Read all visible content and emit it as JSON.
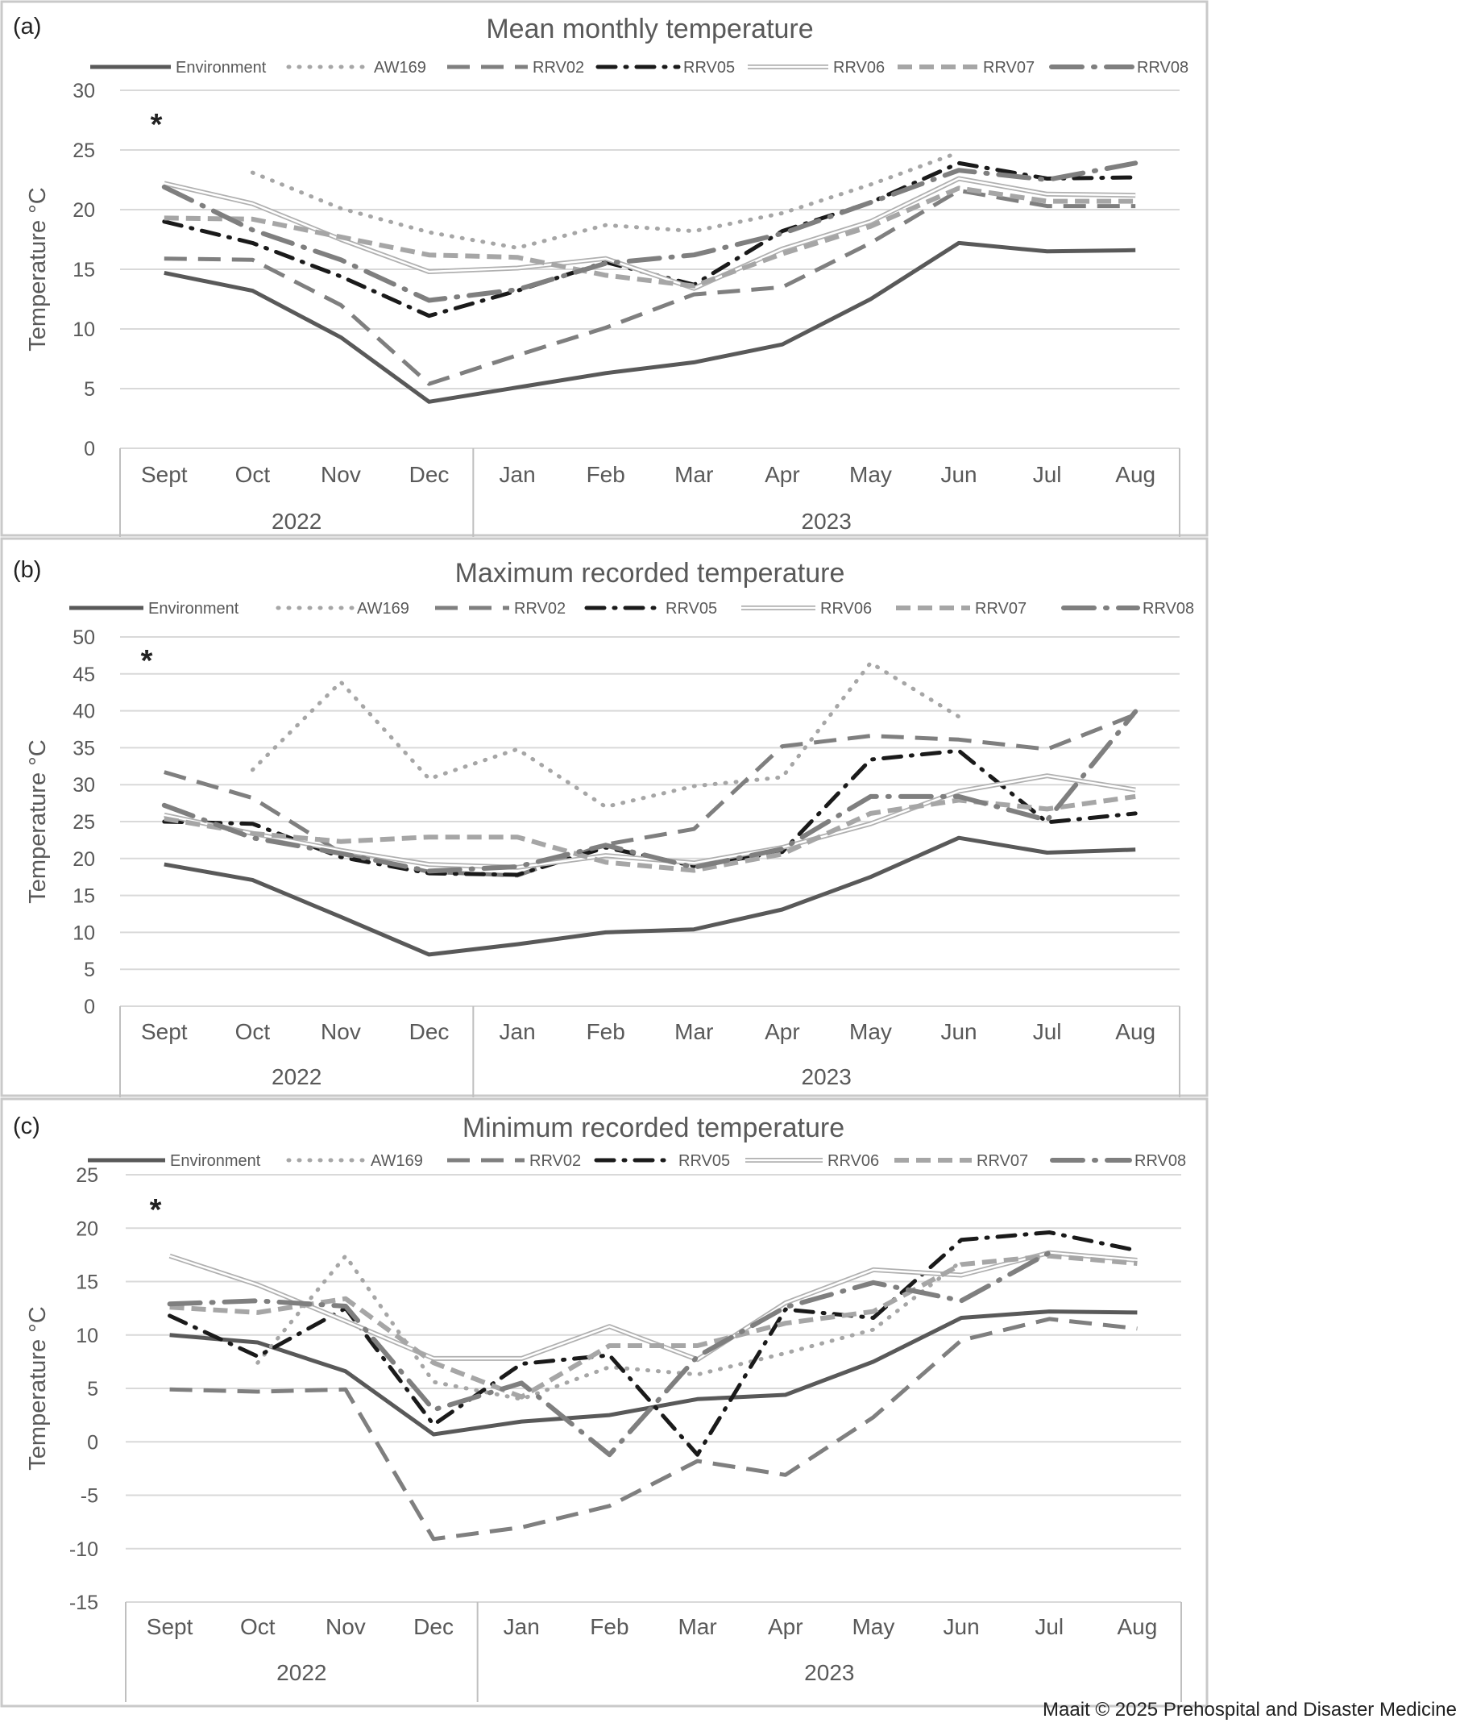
{
  "credit": "Maait © 2025 Prehospital and Disaster Medicine",
  "chart_data": [
    {
      "type": "line",
      "panel_label": "(a)",
      "title": "Mean monthly temperature",
      "ylabel": "Temperature °C",
      "xlabel": "",
      "ylim": [
        0,
        30
      ],
      "y_ticks": [
        0,
        5,
        10,
        15,
        20,
        25,
        30
      ],
      "grid": true,
      "legend_position": "top",
      "annotation": "*",
      "categories": [
        "Sept",
        "Oct",
        "Nov",
        "Dec",
        "Jan",
        "Feb",
        "Mar",
        "Apr",
        "May",
        "Jun",
        "Jul",
        "Aug"
      ],
      "year_groups": [
        {
          "label": "2022",
          "span": 4
        },
        {
          "label": "2023",
          "span": 8
        }
      ],
      "series": [
        {
          "name": "Environment",
          "values": [
            14.7,
            13.2,
            9.3,
            3.9,
            5.1,
            6.3,
            7.2,
            8.7,
            12.5,
            17.2,
            16.5,
            16.6
          ]
        },
        {
          "name": "AW169",
          "values": [
            null,
            23.1,
            20.1,
            18.1,
            16.8,
            18.7,
            18.2,
            19.7,
            22.1,
            24.8,
            null,
            null
          ]
        },
        {
          "name": "RRV02",
          "values": [
            15.9,
            15.8,
            12.0,
            5.4,
            7.8,
            10.1,
            12.9,
            13.5,
            17.2,
            21.6,
            20.3,
            20.3
          ]
        },
        {
          "name": "RRV05",
          "values": [
            19.0,
            17.2,
            14.4,
            11.1,
            13.2,
            15.6,
            13.7,
            18.2,
            20.6,
            23.9,
            22.6,
            22.7
          ]
        },
        {
          "name": "RRV06",
          "values": [
            22.2,
            20.5,
            17.5,
            14.8,
            15.1,
            15.9,
            13.4,
            16.7,
            19.0,
            22.6,
            21.3,
            21.2
          ]
        },
        {
          "name": "RRV07",
          "values": [
            19.3,
            19.2,
            17.7,
            16.2,
            16.0,
            14.5,
            13.6,
            16.3,
            18.6,
            21.8,
            20.7,
            20.7
          ]
        },
        {
          "name": "RRV08",
          "values": [
            21.9,
            18.3,
            15.8,
            12.4,
            13.3,
            15.5,
            16.2,
            18.0,
            20.6,
            23.3,
            22.5,
            23.9
          ]
        }
      ]
    },
    {
      "type": "line",
      "panel_label": "(b)",
      "title": "Maximum recorded temperature",
      "ylabel": "Temperature °C",
      "xlabel": "",
      "ylim": [
        0,
        50
      ],
      "y_ticks": [
        0,
        5,
        10,
        15,
        20,
        25,
        30,
        35,
        40,
        45,
        50
      ],
      "grid": true,
      "legend_position": "top",
      "annotation": "*",
      "categories": [
        "Sept",
        "Oct",
        "Nov",
        "Dec",
        "Jan",
        "Feb",
        "Mar",
        "Apr",
        "May",
        "Jun",
        "Jul",
        "Aug"
      ],
      "year_groups": [
        {
          "label": "2022",
          "span": 4
        },
        {
          "label": "2023",
          "span": 8
        }
      ],
      "series": [
        {
          "name": "Environment",
          "values": [
            19.2,
            17.1,
            12.1,
            7.0,
            8.4,
            10.0,
            10.4,
            13.1,
            17.5,
            22.8,
            20.8,
            21.2
          ]
        },
        {
          "name": "AW169",
          "values": [
            null,
            32.0,
            43.9,
            30.8,
            34.8,
            27.0,
            29.8,
            31.0,
            46.5,
            39.2,
            null,
            null
          ]
        },
        {
          "name": "RRV02",
          "values": [
            31.7,
            28.2,
            20.8,
            18.2,
            17.7,
            21.9,
            24.0,
            35.2,
            36.6,
            36.1,
            34.8,
            39.5
          ]
        },
        {
          "name": "RRV05",
          "values": [
            25.0,
            24.7,
            20.2,
            18.0,
            17.8,
            21.5,
            19.0,
            20.9,
            33.4,
            34.6,
            24.9,
            26.1
          ]
        },
        {
          "name": "RRV06",
          "values": [
            25.9,
            23.4,
            21.1,
            19.2,
            18.8,
            20.4,
            19.4,
            21.5,
            24.7,
            29.1,
            31.2,
            29.3
          ]
        },
        {
          "name": "RRV07",
          "values": [
            25.4,
            23.4,
            22.3,
            22.9,
            22.9,
            19.5,
            18.4,
            20.6,
            26.1,
            27.9,
            26.7,
            28.4
          ]
        },
        {
          "name": "RRV08",
          "values": [
            27.2,
            22.8,
            20.7,
            18.3,
            18.9,
            21.8,
            18.8,
            21.3,
            28.4,
            28.4,
            25.2,
            39.9
          ]
        }
      ]
    },
    {
      "type": "line",
      "panel_label": "(c)",
      "title": "Minimum recorded temperature",
      "ylabel": "Temperature °C",
      "xlabel": "",
      "ylim": [
        -15,
        25
      ],
      "y_ticks": [
        -15,
        -10,
        -5,
        0,
        5,
        10,
        15,
        20,
        25
      ],
      "grid": true,
      "legend_position": "top",
      "annotation": "*",
      "categories": [
        "Sept",
        "Oct",
        "Nov",
        "Dec",
        "Jan",
        "Feb",
        "Mar",
        "Apr",
        "May",
        "Jun",
        "Jul",
        "Aug"
      ],
      "year_groups": [
        {
          "label": "2022",
          "span": 4
        },
        {
          "label": "2023",
          "span": 8
        }
      ],
      "series": [
        {
          "name": "Environment",
          "values": [
            10.0,
            9.3,
            6.6,
            0.7,
            1.9,
            2.5,
            4.0,
            4.4,
            7.5,
            11.6,
            12.2,
            12.1
          ]
        },
        {
          "name": "AW169",
          "values": [
            null,
            7.4,
            17.4,
            5.6,
            4.0,
            7.0,
            6.3,
            8.3,
            10.5,
            16.9,
            null,
            null
          ]
        },
        {
          "name": "RRV02",
          "values": [
            4.9,
            4.7,
            4.9,
            -9.1,
            -8.0,
            -6.0,
            -1.8,
            -3.1,
            2.3,
            9.5,
            11.5,
            10.6
          ]
        },
        {
          "name": "RRV05",
          "values": [
            11.8,
            8.0,
            12.5,
            1.6,
            7.3,
            8.1,
            -1.2,
            12.4,
            11.6,
            18.9,
            19.6,
            17.9
          ]
        },
        {
          "name": "RRV06",
          "values": [
            17.4,
            14.7,
            11.3,
            7.8,
            7.8,
            10.8,
            7.7,
            13.0,
            16.1,
            15.6,
            17.7,
            17.0
          ]
        },
        {
          "name": "RRV07",
          "values": [
            12.6,
            12.1,
            13.4,
            7.4,
            4.2,
            9.0,
            9.0,
            11.1,
            12.2,
            16.6,
            17.4,
            16.7
          ]
        },
        {
          "name": "RRV08",
          "values": [
            12.9,
            13.2,
            12.7,
            3.0,
            5.5,
            -1.2,
            8.0,
            12.6,
            14.9,
            13.2,
            17.7,
            null
          ]
        }
      ]
    }
  ]
}
